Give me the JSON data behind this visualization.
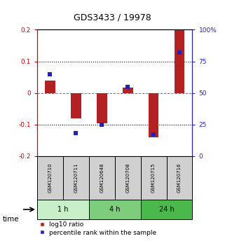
{
  "title": "GDS3433 / 19978",
  "samples": [
    "GSM120710",
    "GSM120711",
    "GSM120648",
    "GSM120708",
    "GSM120715",
    "GSM120716"
  ],
  "log10_ratio": [
    0.04,
    -0.08,
    -0.095,
    0.018,
    -0.14,
    0.2
  ],
  "percentile_rank": [
    65,
    18,
    25,
    55,
    17,
    82
  ],
  "groups": [
    {
      "label": "1 h",
      "indices": [
        0,
        1
      ],
      "color": "#c8f0c8"
    },
    {
      "label": "4 h",
      "indices": [
        2,
        3
      ],
      "color": "#7dcd7d"
    },
    {
      "label": "24 h",
      "indices": [
        4,
        5
      ],
      "color": "#4ab84a"
    }
  ],
  "bar_color": "#b22222",
  "dot_color": "#2222bb",
  "ylim_left": [
    -0.2,
    0.2
  ],
  "ylim_right": [
    0,
    100
  ],
  "yticks_left": [
    -0.2,
    -0.1,
    0.0,
    0.1,
    0.2
  ],
  "yticks_right": [
    0,
    25,
    50,
    75,
    100
  ],
  "ytick_labels_left": [
    "-0.2",
    "-0.1",
    "0",
    "0.1",
    "0.2"
  ],
  "ytick_labels_right": [
    "0",
    "25",
    "50",
    "75",
    "100%"
  ],
  "bar_width": 0.4,
  "dot_size": 18,
  "sample_box_color": "#d0d0d0",
  "time_label": "time",
  "legend_labels": [
    "log10 ratio",
    "percentile rank within the sample"
  ]
}
